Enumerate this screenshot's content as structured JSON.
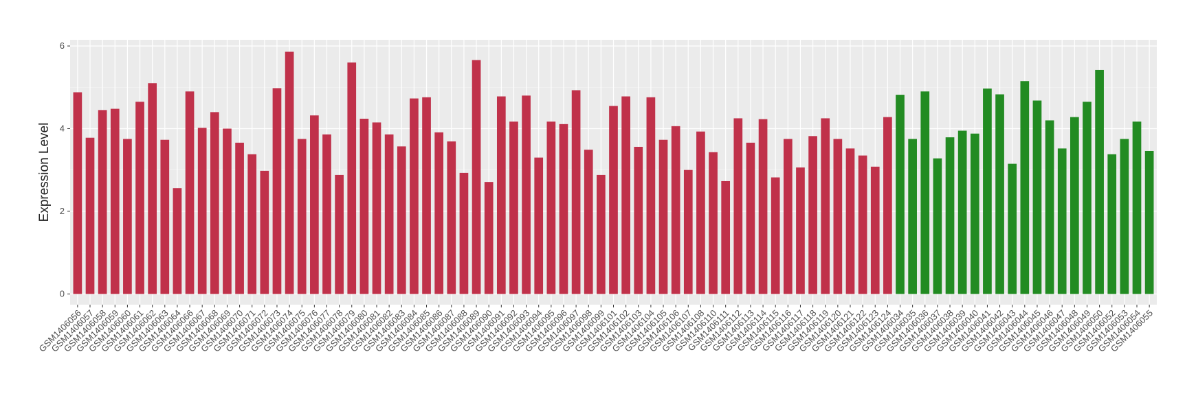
{
  "chart_data": {
    "type": "bar",
    "y_label": "Expression Level",
    "ylim": [
      -0.26,
      6.15
    ],
    "yticks": [
      0,
      2,
      4,
      6
    ],
    "grid": true,
    "series": [
      {
        "color": "#c0314a",
        "categories": [
          "GSM1406056",
          "GSM1406057",
          "GSM1406058",
          "GSM1406059",
          "GSM1406060",
          "GSM1406061",
          "GSM1406062",
          "GSM1406063",
          "GSM1406064",
          "GSM1406066",
          "GSM1406067",
          "GSM1406068",
          "GSM1406069",
          "GSM1406070",
          "GSM1406071",
          "GSM1406072",
          "GSM1406073",
          "GSM1406074",
          "GSM1406075",
          "GSM1406076",
          "GSM1406077",
          "GSM1406078",
          "GSM1406079",
          "GSM1406080",
          "GSM1406081",
          "GSM1406082",
          "GSM1406083",
          "GSM1406084",
          "GSM1406085",
          "GSM1406086",
          "GSM1406087",
          "GSM1406088",
          "GSM1406089",
          "GSM1406090",
          "GSM1406091",
          "GSM1406092",
          "GSM1406093",
          "GSM1406094",
          "GSM1406095",
          "GSM1406096",
          "GSM1406097",
          "GSM1406098",
          "GSM1406099",
          "GSM1406101",
          "GSM1406102",
          "GSM1406103",
          "GSM1406104",
          "GSM1406105",
          "GSM1406106",
          "GSM1406107",
          "GSM1406108",
          "GSM1406110",
          "GSM1406111",
          "GSM1406112",
          "GSM1406113",
          "GSM1406114",
          "GSM1406115",
          "GSM1406116",
          "GSM1406117",
          "GSM1406118",
          "GSM1406119",
          "GSM1406120",
          "GSM1406121",
          "GSM1406122",
          "GSM1406123",
          "GSM1406124"
        ],
        "values": [
          4.88,
          3.78,
          4.45,
          4.48,
          3.75,
          4.65,
          5.1,
          3.73,
          2.56,
          4.9,
          4.02,
          4.4,
          4.0,
          3.66,
          3.38,
          2.98,
          4.98,
          5.86,
          3.75,
          4.32,
          3.86,
          2.88,
          5.6,
          4.24,
          4.15,
          3.86,
          3.57,
          4.73,
          4.76,
          3.91,
          3.69,
          2.93,
          5.66,
          2.71,
          4.78,
          4.17,
          4.8,
          3.3,
          4.17,
          4.11,
          4.93,
          3.49,
          2.88,
          4.55,
          4.78,
          3.56,
          4.76,
          3.73,
          4.06,
          3.0,
          3.93,
          3.43,
          2.73,
          4.25,
          3.66,
          4.23,
          2.82,
          3.75,
          3.06,
          3.82,
          4.25,
          3.75,
          3.52,
          3.35,
          3.08,
          4.28
        ]
      },
      {
        "color": "#228b22",
        "categories": [
          "GSM1406034",
          "GSM1406035",
          "GSM1406036",
          "GSM1406037",
          "GSM1406038",
          "GSM1406039",
          "GSM1406040",
          "GSM1406041",
          "GSM1406042",
          "GSM1406043",
          "GSM1406044",
          "GSM1406045",
          "GSM1406046",
          "GSM1406047",
          "GSM1406048",
          "GSM1406049",
          "GSM1406050",
          "GSM1406052",
          "GSM1406053",
          "GSM1406054",
          "GSM1406055"
        ],
        "values": [
          4.82,
          3.75,
          4.9,
          3.28,
          3.79,
          3.95,
          3.88,
          4.97,
          4.83,
          3.15,
          5.15,
          4.68,
          4.2,
          3.52,
          4.28,
          4.65,
          5.42,
          3.38,
          3.75,
          4.17,
          3.46
        ]
      }
    ]
  }
}
